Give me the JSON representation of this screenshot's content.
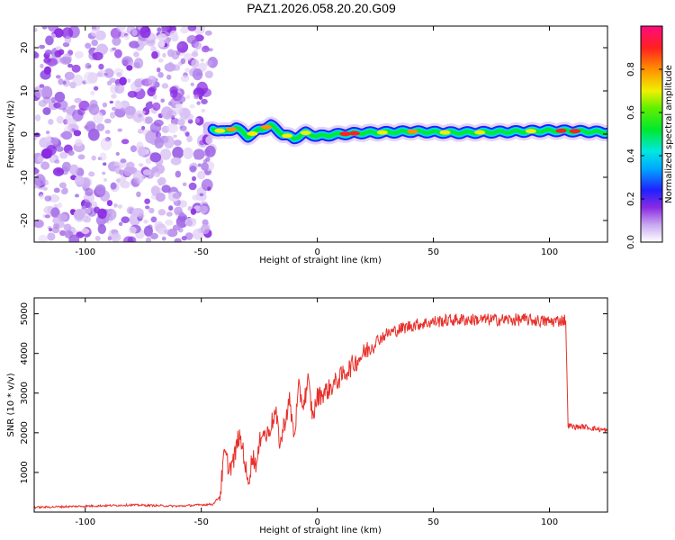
{
  "title": "PAZ1.2026.058.20.20.G09",
  "chart_data": [
    {
      "type": "heatmap",
      "name": "spectrogram",
      "xlabel": "Height of straight line (km)",
      "ylabel": "Frequency (Hz)",
      "xlim": [
        -122,
        125
      ],
      "ylim": [
        -25,
        25
      ],
      "xticks": [
        -100,
        -50,
        0,
        50,
        100
      ],
      "yticks": [
        -20,
        -10,
        0,
        10,
        20
      ],
      "noise_region_x": [
        -122,
        -45
      ],
      "signal_ridge": {
        "x": [
          -45,
          -40,
          -35,
          -30,
          -25,
          -20,
          -15,
          -10,
          -5,
          0,
          10,
          20,
          30,
          40,
          60,
          80,
          100,
          110,
          125
        ],
        "freq": [
          1.2,
          0.5,
          1.5,
          -0.5,
          1.0,
          2.0,
          0.0,
          -1.0,
          0.3,
          -0.5,
          0.0,
          0.3,
          0.4,
          0.6,
          0.3,
          0.5,
          0.8,
          0.7,
          0.4
        ]
      },
      "colorbar": {
        "label": "Normalized spectral amplitude",
        "range": [
          0.0,
          1.0
        ],
        "ticks": [
          "0.0",
          "0.2",
          "0.4",
          "0.6",
          "0.8"
        ],
        "tick_values": [
          0.0,
          0.2,
          0.4,
          0.6,
          0.8
        ]
      }
    },
    {
      "type": "line",
      "name": "snr",
      "xlabel": "Height of straight line (km)",
      "ylabel": "SNR (10 * v/v)",
      "xlim": [
        -122,
        125
      ],
      "ylim": [
        0,
        5400
      ],
      "xticks": [
        -100,
        -50,
        0,
        50,
        100
      ],
      "yticks": [
        1000,
        2000,
        3000,
        4000,
        5000
      ],
      "color": "#e8302a",
      "series": [
        {
          "name": "SNR",
          "x": [
            -122,
            -100,
            -80,
            -60,
            -45,
            -42,
            -40,
            -38,
            -36,
            -34,
            -32,
            -30,
            -28,
            -26,
            -24,
            -22,
            -20,
            -18,
            -16,
            -14,
            -12,
            -10,
            -8,
            -6,
            -4,
            -2,
            0,
            5,
            10,
            15,
            20,
            25,
            30,
            40,
            50,
            60,
            70,
            80,
            90,
            100,
            107,
            108,
            110,
            115,
            120,
            125
          ],
          "y": [
            120,
            150,
            180,
            150,
            200,
            400,
            1500,
            1100,
            1300,
            1900,
            1600,
            700,
            1400,
            1200,
            2100,
            1900,
            2200,
            2500,
            1700,
            2300,
            2800,
            1900,
            3100,
            2700,
            3300,
            2400,
            2900,
            3100,
            3400,
            3700,
            4000,
            4300,
            4500,
            4700,
            4800,
            4850,
            4850,
            4850,
            4850,
            4800,
            4850,
            2200,
            2150,
            2150,
            2100,
            2050
          ]
        }
      ]
    }
  ]
}
